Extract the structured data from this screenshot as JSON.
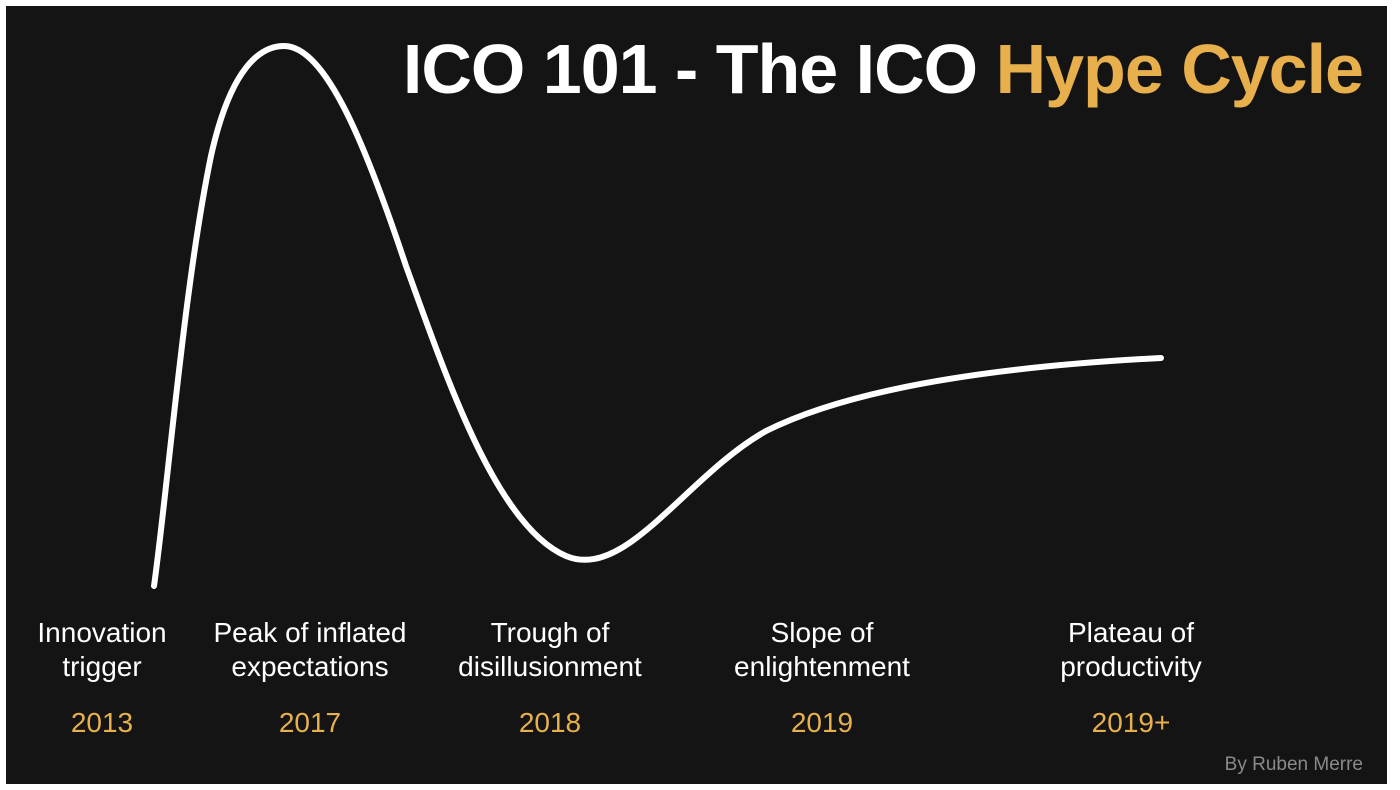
{
  "title": {
    "main": "ICO 101 - The ICO ",
    "accent": "Hype Cycle"
  },
  "colors": {
    "background": "#141414",
    "curve": "#ffffff",
    "accent": "#e8b04d",
    "text": "#ffffff",
    "credit": "#8a8a8a"
  },
  "phases": [
    {
      "name": "Innovation\ntrigger",
      "year": "2013"
    },
    {
      "name": "Peak of inflated\nexpectations",
      "year": "2017"
    },
    {
      "name": "Trough of\ndisillusionment",
      "year": "2018"
    },
    {
      "name": "Slope of\nenlightenment",
      "year": "2019"
    },
    {
      "name": "Plateau of\nproductivity",
      "year": "2019+"
    }
  ],
  "credit": "By Ruben Merre"
}
